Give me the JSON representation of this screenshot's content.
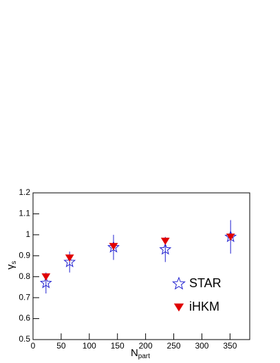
{
  "chart_data": {
    "type": "scatter",
    "x_label": {
      "text": "N",
      "sub": "part"
    },
    "y_label": {
      "text": "γ",
      "sub": "s"
    },
    "xlim": [
      0,
      385
    ],
    "xticks": [
      0,
      50,
      100,
      150,
      200,
      250,
      300,
      350
    ],
    "ylim": [
      0.5,
      1.2
    ],
    "yticks": [
      0.5,
      0.6,
      0.7,
      0.8,
      0.9,
      1,
      1.1,
      1.2
    ],
    "legend": "lower right",
    "series": [
      {
        "name": "STAR",
        "color": "#2020d0",
        "marker": "open-star",
        "x": [
          23,
          65,
          143,
          235,
          351
        ],
        "values": [
          0.77,
          0.87,
          0.94,
          0.93,
          0.99
        ],
        "errors": [
          0.05,
          0.05,
          0.06,
          0.06,
          0.08
        ]
      },
      {
        "name": "iHKM",
        "color": "#e00000",
        "marker": "triangle-down",
        "x": [
          23,
          65,
          143,
          235,
          351
        ],
        "values": [
          0.8,
          0.89,
          0.945,
          0.97,
          0.99
        ]
      }
    ]
  }
}
